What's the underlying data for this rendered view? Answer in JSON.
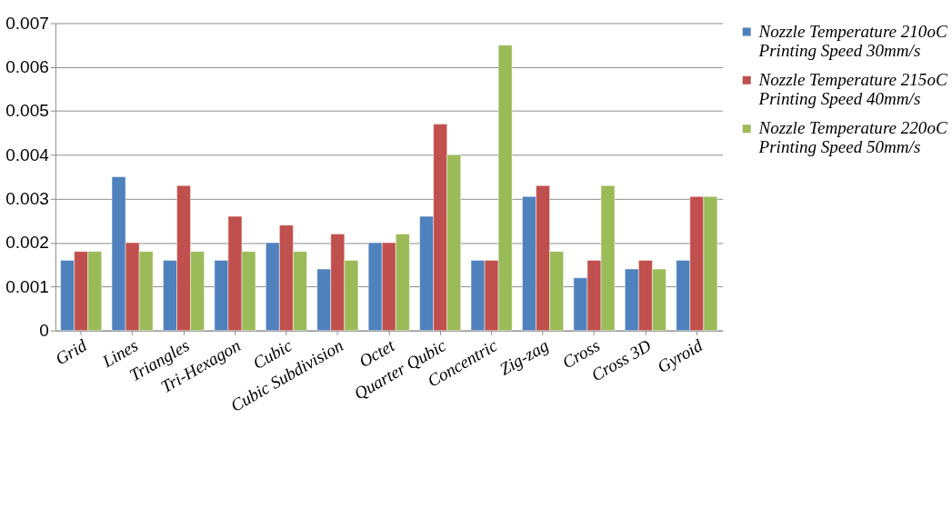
{
  "chart_data": {
    "type": "bar",
    "categories": [
      "Grid",
      "Lines",
      "Triangles",
      "Tri-Hexagon",
      "Cubic",
      "Cubic Subdivision",
      "Octet",
      "Quarter Qubic",
      "Concentric",
      "Zig-zag",
      "Cross",
      "Cross 3D",
      "Gyroid"
    ],
    "series": [
      {
        "name": "Nozzle Temperature 210oC\nPrinting Speed 30mm/s",
        "color": "#4f81bd",
        "values": [
          0.0016,
          0.0035,
          0.0016,
          0.0016,
          0.002,
          0.0014,
          0.002,
          0.0026,
          0.0016,
          0.00305,
          0.0012,
          0.0014,
          0.0016
        ]
      },
      {
        "name": "Nozzle Temperature 215oC\nPrinting Speed 40mm/s",
        "color": "#c0504d",
        "values": [
          0.0018,
          0.002,
          0.0033,
          0.0026,
          0.0024,
          0.0022,
          0.002,
          0.0047,
          0.0016,
          0.0033,
          0.0016,
          0.0016,
          0.00305
        ]
      },
      {
        "name": "Nozzle Temperature 220oC\nPrinting Speed 50mm/s",
        "color": "#9bbb59",
        "values": [
          0.0018,
          0.0018,
          0.0018,
          0.0018,
          0.0018,
          0.0016,
          0.0022,
          0.004,
          0.0065,
          0.0018,
          0.0033,
          0.0014,
          0.00305
        ]
      }
    ],
    "ylim": [
      0,
      0.007
    ],
    "yticks": [
      0,
      0.001,
      0.002,
      0.003,
      0.004,
      0.005,
      0.006,
      0.007
    ],
    "grid": "y",
    "legend": "right"
  }
}
